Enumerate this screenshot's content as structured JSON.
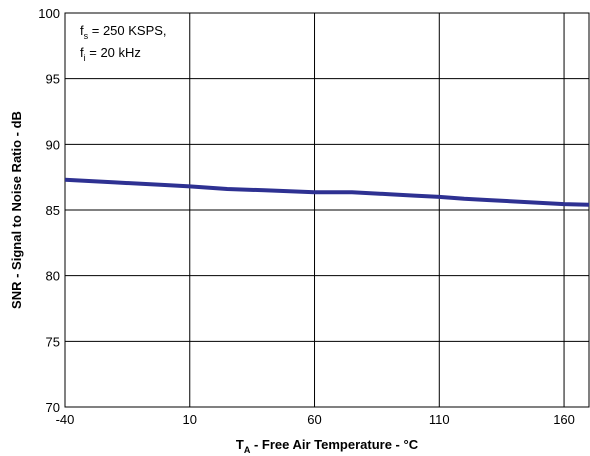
{
  "chart_data": {
    "type": "line",
    "xlabel_main": "T",
    "xlabel_sub": "A",
    "xlabel_rest": " - Free Air Temperature - °C",
    "ylabel": "SNR - Signal to Noise Ratio - dB",
    "xlim": [
      -40,
      170
    ],
    "ylim": [
      70,
      100
    ],
    "x_ticks": [
      "-40",
      "10",
      "60",
      "110",
      "160"
    ],
    "x_tick_values": [
      -40,
      10,
      60,
      110,
      160
    ],
    "y_ticks": [
      "70",
      "75",
      "80",
      "85",
      "90",
      "95",
      "100"
    ],
    "y_tick_values": [
      70,
      75,
      80,
      85,
      90,
      95,
      100
    ],
    "grid": true,
    "annotation": {
      "line1_main": "f",
      "line1_sub": "s",
      "line1_rest": " = 250 KSPS,",
      "line2_main": "f",
      "line2_sub": "i",
      "line2_rest": " = 20 kHz"
    },
    "series": [
      {
        "color": "#2e3192",
        "x": [
          -40,
          -20,
          0,
          10,
          25,
          40,
          60,
          75,
          90,
          100,
          110,
          120,
          130,
          145,
          160,
          170
        ],
        "values": [
          87.3,
          87.1,
          86.9,
          86.8,
          86.6,
          86.5,
          86.35,
          86.35,
          86.2,
          86.1,
          86.0,
          85.85,
          85.75,
          85.6,
          85.45,
          85.4
        ]
      }
    ]
  }
}
